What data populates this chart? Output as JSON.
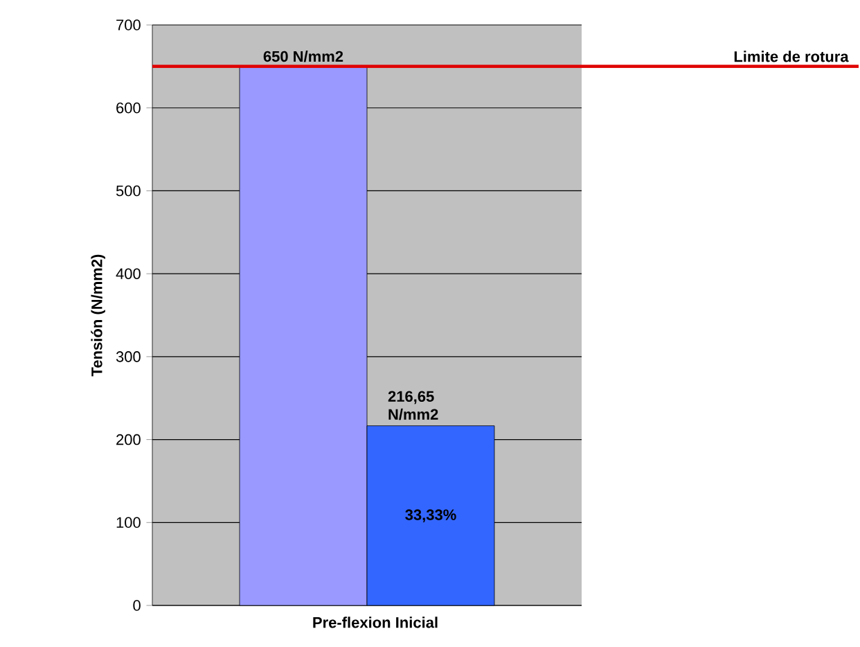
{
  "chart_data": {
    "type": "bar",
    "ylabel": "Tensión (N/mm2)",
    "categories": [
      "Pre-flexion Inicial"
    ],
    "series": [
      {
        "color": "#9999ff",
        "values": [
          650
        ],
        "value_labels": [
          "650 N/mm2"
        ]
      },
      {
        "color": "#3366ff",
        "values": [
          216.65
        ],
        "value_labels": [
          "216,65 N/mm2"
        ]
      }
    ],
    "ylim": [
      0,
      700
    ],
    "yticks": [
      0,
      100,
      200,
      300,
      400,
      500,
      600,
      700
    ],
    "grid": "y",
    "ref_lines": [
      {
        "axis": "y",
        "value": 650,
        "label": "Limite de rotura",
        "color": "#e00000"
      }
    ],
    "annotations": [
      {
        "text": "33,33%",
        "x": "Pre-flexion Inicial",
        "y": 108
      }
    ]
  }
}
